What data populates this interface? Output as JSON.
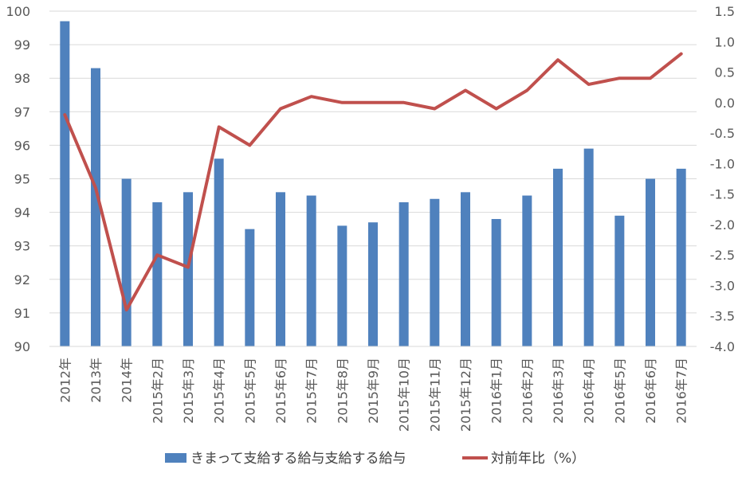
{
  "chart_data": {
    "type": "bar",
    "categories": [
      "2012年",
      "2013年",
      "2014年",
      "2015年2月",
      "2015年3月",
      "2015年4月",
      "2015年5月",
      "2015年6月",
      "2015年7月",
      "2015年8月",
      "2015年9月",
      "2015年10月",
      "2015年11月",
      "2015年12月",
      "2016年1月",
      "2016年2月",
      "2016年3月",
      "2016年4月",
      "2016年5月",
      "2016年6月",
      "2016年7月"
    ],
    "series": [
      {
        "name": "きまって支給する給与支給する給与",
        "type": "bar",
        "axis": "left",
        "color": "#4f81bd",
        "values": [
          99.7,
          98.3,
          95.0,
          94.3,
          94.6,
          95.6,
          93.5,
          94.6,
          94.5,
          93.6,
          93.7,
          94.3,
          94.4,
          94.6,
          93.8,
          94.5,
          95.3,
          95.9,
          93.9,
          95.0,
          95.3
        ]
      },
      {
        "name": "対前年比（%）",
        "type": "line",
        "axis": "right",
        "color": "#c0504d",
        "values": [
          -0.2,
          -1.4,
          -3.4,
          -2.5,
          -2.7,
          -0.4,
          -0.7,
          -0.1,
          0.1,
          0.0,
          0.0,
          0.0,
          -0.1,
          0.2,
          -0.1,
          0.2,
          0.7,
          0.3,
          0.4,
          0.4,
          0.8
        ]
      }
    ],
    "y_left": {
      "min": 90,
      "max": 100,
      "step": 1,
      "ticks": [
        "90",
        "91",
        "92",
        "93",
        "94",
        "95",
        "96",
        "97",
        "98",
        "99",
        "100"
      ]
    },
    "y_right": {
      "min": -4.0,
      "max": 1.5,
      "step": 0.5,
      "ticks": [
        "-4.0",
        "-3.5",
        "-3.0",
        "-2.5",
        "-2.0",
        "-1.5",
        "-1.0",
        "-0.5",
        "0.0",
        "0.5",
        "1.0",
        "1.5"
      ]
    },
    "title": "",
    "xlabel": "",
    "ylabel": "",
    "grid": true,
    "legend": "bottom"
  }
}
